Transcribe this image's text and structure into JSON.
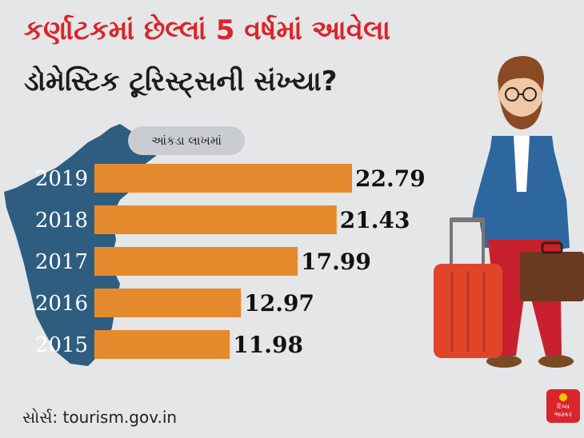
{
  "title_line1": "કર્ણાટકમાં છેલ્લાં 5 વર્ષમાં આવેલા",
  "title_line2": "ડોમેસ્ટિક ટૂરિસ્ટ્સની સંખ્યા?",
  "unit_note": "આંકડા લાખમાં",
  "source": "સોર્સ: tourism.gov.in",
  "logo_text": "દિવ્ય ભાસ્કર",
  "colors": {
    "bar": "#e58a2c",
    "map": "#2e5d80",
    "title_accent": "#d9252b",
    "background": "#e4e6e8"
  },
  "chart_data": {
    "type": "bar",
    "orientation": "horizontal",
    "categories": [
      "2019",
      "2018",
      "2017",
      "2016",
      "2015"
    ],
    "values": [
      22.79,
      21.43,
      17.99,
      12.97,
      11.98
    ],
    "value_labels": [
      "22.79",
      "21.43",
      "17.99",
      "12.97",
      "11.98"
    ],
    "unit": "આંકડા લાખમાં",
    "title": "કર્ણાટકમાં છેલ્લાં 5 વર્ષમાં આવેલા ડોમેસ્ટિક ટૂરિસ્ટ્સની સંખ્યા?",
    "grid": false
  }
}
